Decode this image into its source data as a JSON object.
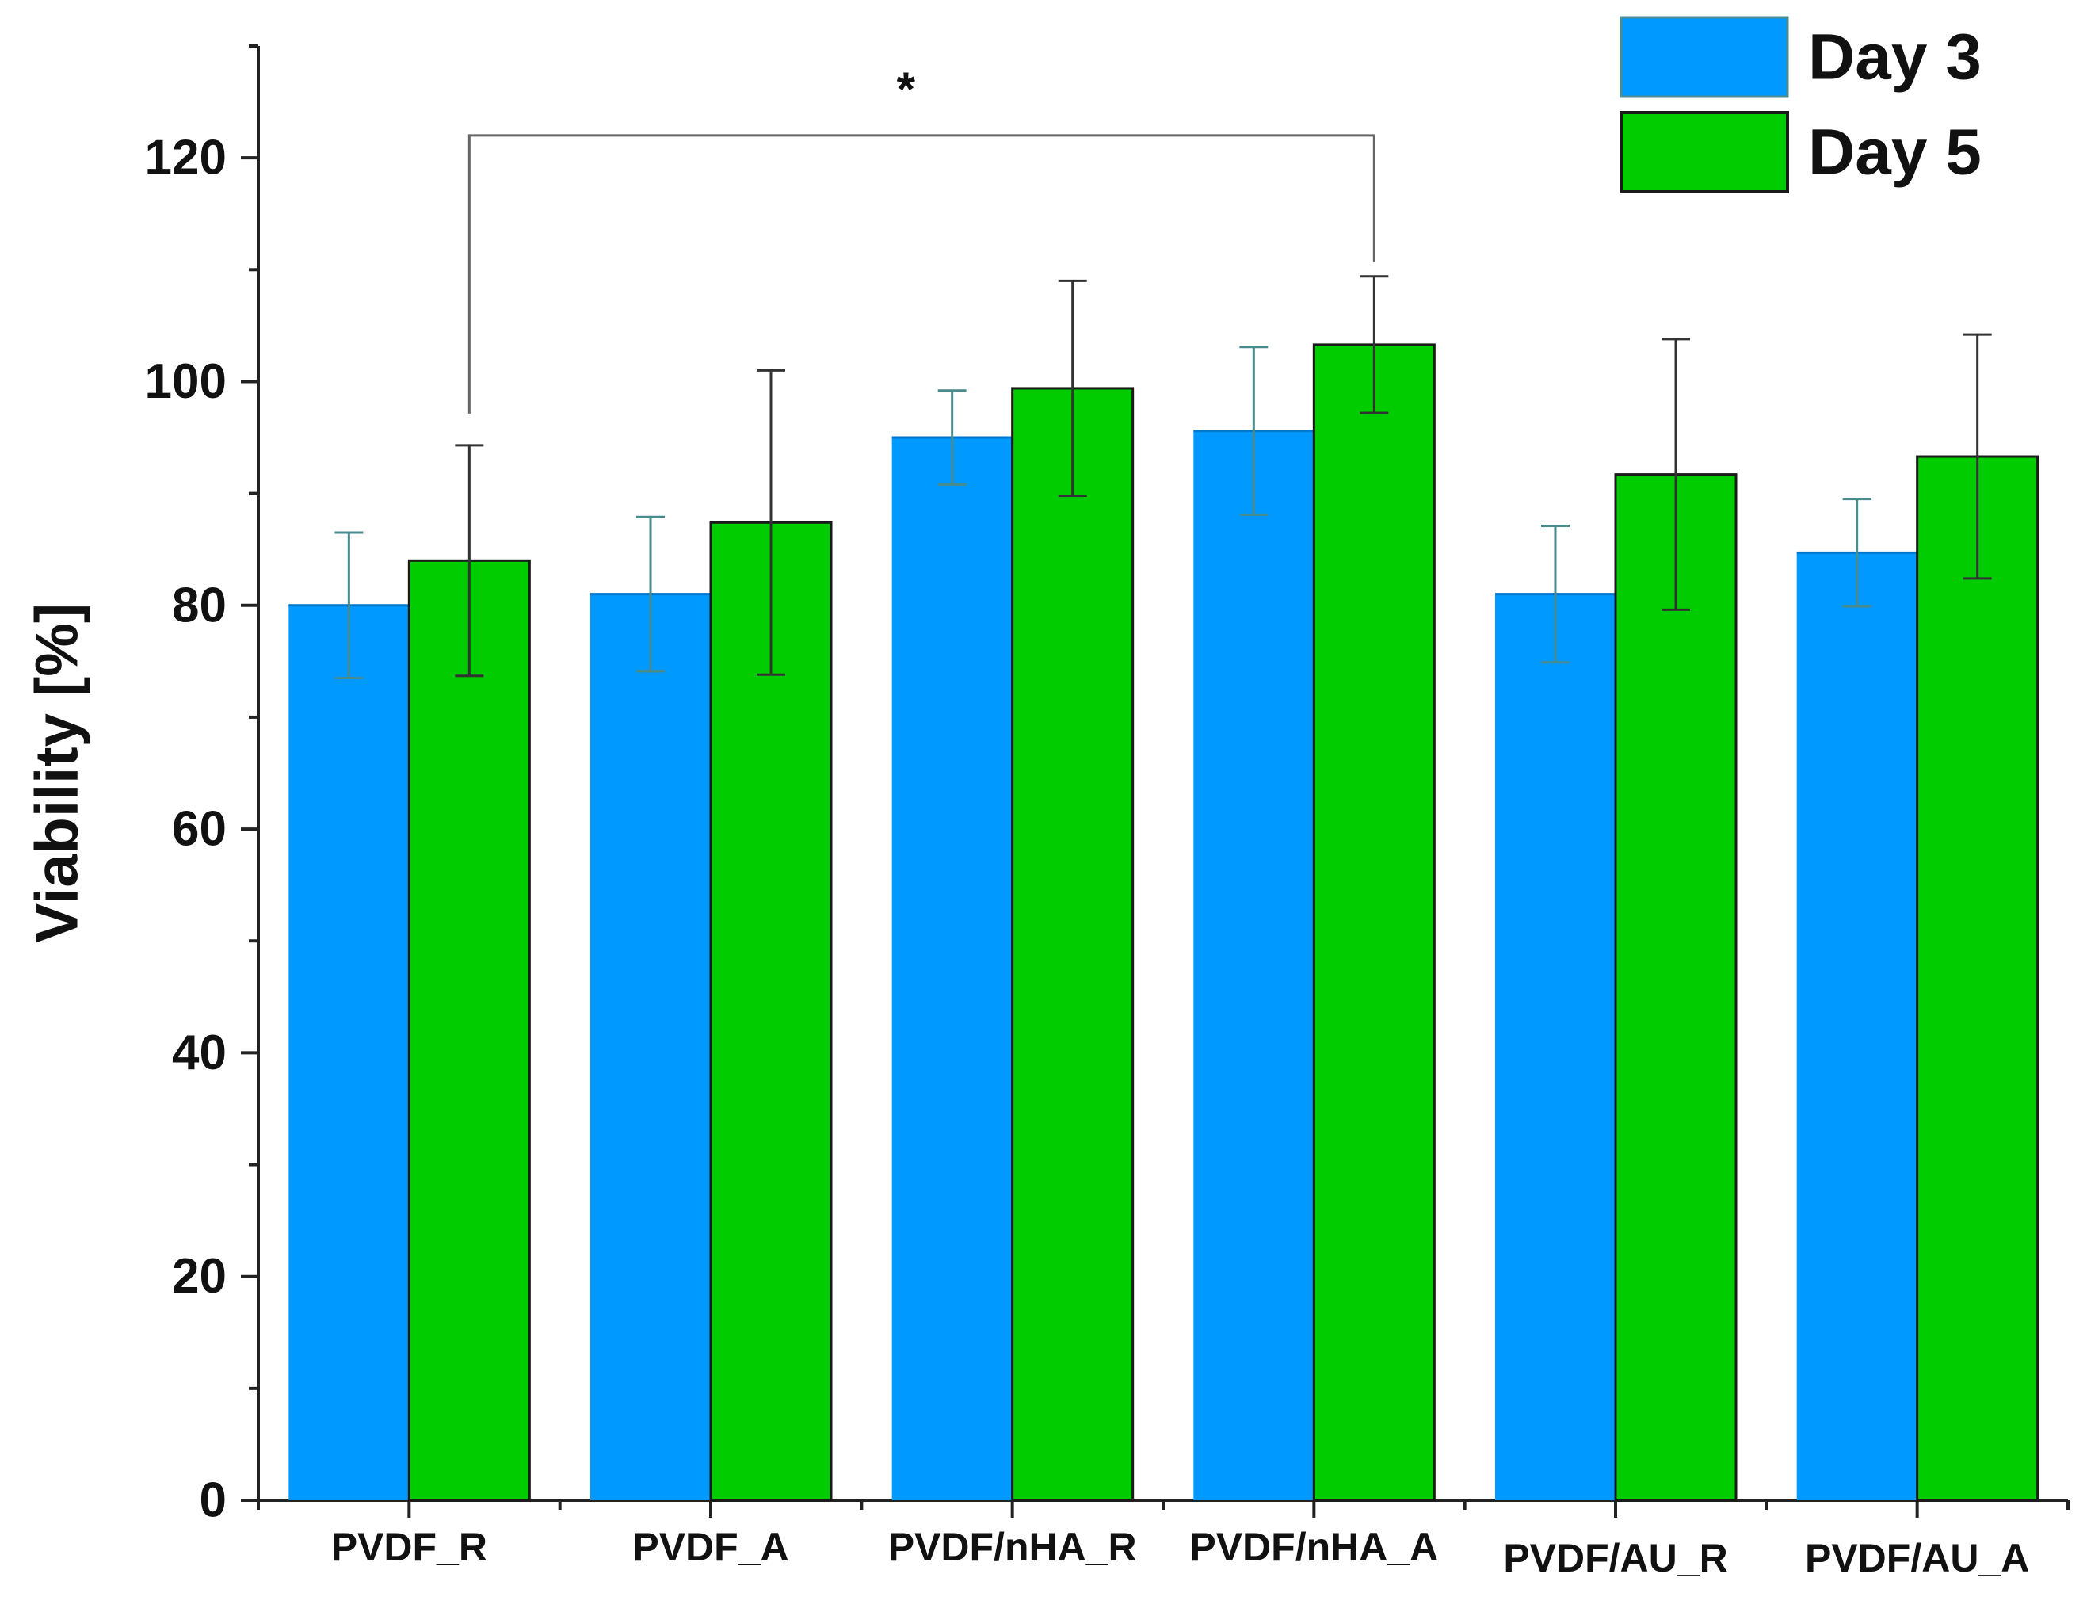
{
  "chart_data": {
    "type": "bar",
    "title": "",
    "xlabel": "",
    "ylabel": "Viability [%]",
    "ylim": [
      0,
      130
    ],
    "yticks": [
      0,
      20,
      40,
      60,
      80,
      100,
      120
    ],
    "grid": false,
    "legend_position": "top-right",
    "categories": [
      "PVDF_R",
      "PVDF_A",
      "PVDF/nHA_R",
      "PVDF/nHA_A",
      "PVDF/AU_R",
      "PVDF/AU_A"
    ],
    "series": [
      {
        "name": "Day 3",
        "color": "#0099ff",
        "errorbar_color": "#4a8c8c",
        "values": [
          80,
          81,
          95,
          95.6,
          81,
          84.7
        ],
        "errors": [
          6.5,
          6.9,
          4.2,
          7.5,
          6.1,
          4.8
        ]
      },
      {
        "name": "Day 5",
        "color": "#00cc00",
        "errorbar_color": "#333333",
        "values": [
          84,
          87.4,
          99.4,
          103.3,
          91.7,
          93.3
        ],
        "errors": [
          10.3,
          13.6,
          9.6,
          6.1,
          12.1,
          10.9
        ]
      }
    ],
    "annotations": [
      {
        "type": "significance",
        "label": "*",
        "from": "PVDF_R",
        "to": "PVDF/nHA_A",
        "series": "Day 5",
        "bracket_level": 122
      }
    ]
  }
}
